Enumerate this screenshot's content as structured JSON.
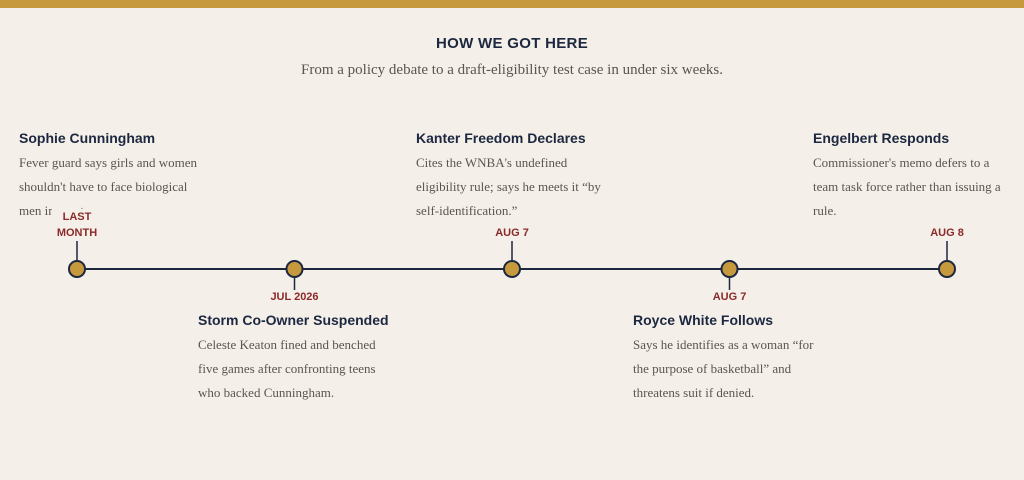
{
  "header": {
    "title": "HOW WE GOT HERE",
    "subtitle": "From a policy debate to a draft-eligibility test case in under six weeks."
  },
  "events": [
    {
      "date": "LAST MONTH",
      "title": "Sophie Cunningham",
      "text": "Fever guard says girls and women shouldn't have to face biological men in sports."
    },
    {
      "date": "JUL 2026",
      "title": "Storm Co-Owner Suspended",
      "text": "Celeste Keaton fined and benched five games after confronting teens who backed Cunningham."
    },
    {
      "date": "AUG 7",
      "title": "Kanter Freedom Declares",
      "text": "Cites the WNBA's undefined eligibility rule; says he meets it “by self-identification.”"
    },
    {
      "date": "AUG 7",
      "title": "Royce White Follows",
      "text": "Says he identifies as a woman “for the purpose of basketball” and threatens suit if denied."
    },
    {
      "date": "AUG 8",
      "title": "Engelbert Responds",
      "text": "Commissioner's memo defers to a team task force rather than issuing a rule."
    }
  ]
}
